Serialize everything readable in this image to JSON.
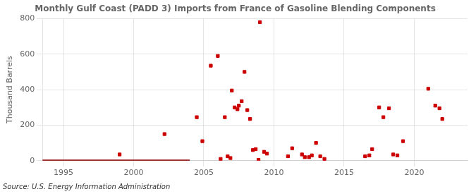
{
  "chart_data": {
    "type": "scatter",
    "title": "Monthly Gulf Coast (PADD 3) Imports from France of Gasoline Blending Components",
    "ylabel": "Thousand Barrels",
    "source": "Source: U.S. Energy Information Administration",
    "xlim": [
      1993.5,
      2023.8
    ],
    "xticks": [
      1995,
      2000,
      2005,
      2010,
      2015,
      2020
    ],
    "ylim": [
      0,
      800
    ],
    "yticks": [
      0,
      200,
      400,
      600,
      800
    ],
    "grid": true,
    "series": [
      {
        "type": "line",
        "color": "#8b0000",
        "x": [
          1993.5,
          2004.0
        ],
        "values": [
          0,
          0
        ]
      },
      {
        "type": "scatter",
        "color": "#cc0000",
        "marker": "square",
        "x": [
          1999.0,
          2002.2,
          2004.5,
          2004.9,
          2005.5,
          2006.0,
          2006.2,
          2006.5,
          2006.7,
          2006.9,
          2007.0,
          2007.2,
          2007.4,
          2007.5,
          2007.7,
          2007.9,
          2008.1,
          2008.3,
          2008.5,
          2008.7,
          2008.9,
          2009.0,
          2009.3,
          2009.5,
          2011.0,
          2011.3,
          2012.0,
          2012.2,
          2012.5,
          2012.7,
          2013.0,
          2013.3,
          2013.6,
          2016.5,
          2016.8,
          2017.0,
          2017.5,
          2017.8,
          2018.2,
          2018.5,
          2018.8,
          2019.2,
          2021.0,
          2021.5,
          2021.8,
          2022.0
        ],
        "values": [
          35,
          150,
          245,
          110,
          535,
          590,
          10,
          245,
          25,
          15,
          395,
          300,
          290,
          310,
          335,
          500,
          285,
          235,
          60,
          65,
          5,
          780,
          50,
          40,
          25,
          70,
          35,
          20,
          20,
          30,
          100,
          25,
          10,
          25,
          30,
          65,
          300,
          245,
          295,
          35,
          30,
          110,
          405,
          310,
          295,
          235
        ]
      }
    ]
  }
}
